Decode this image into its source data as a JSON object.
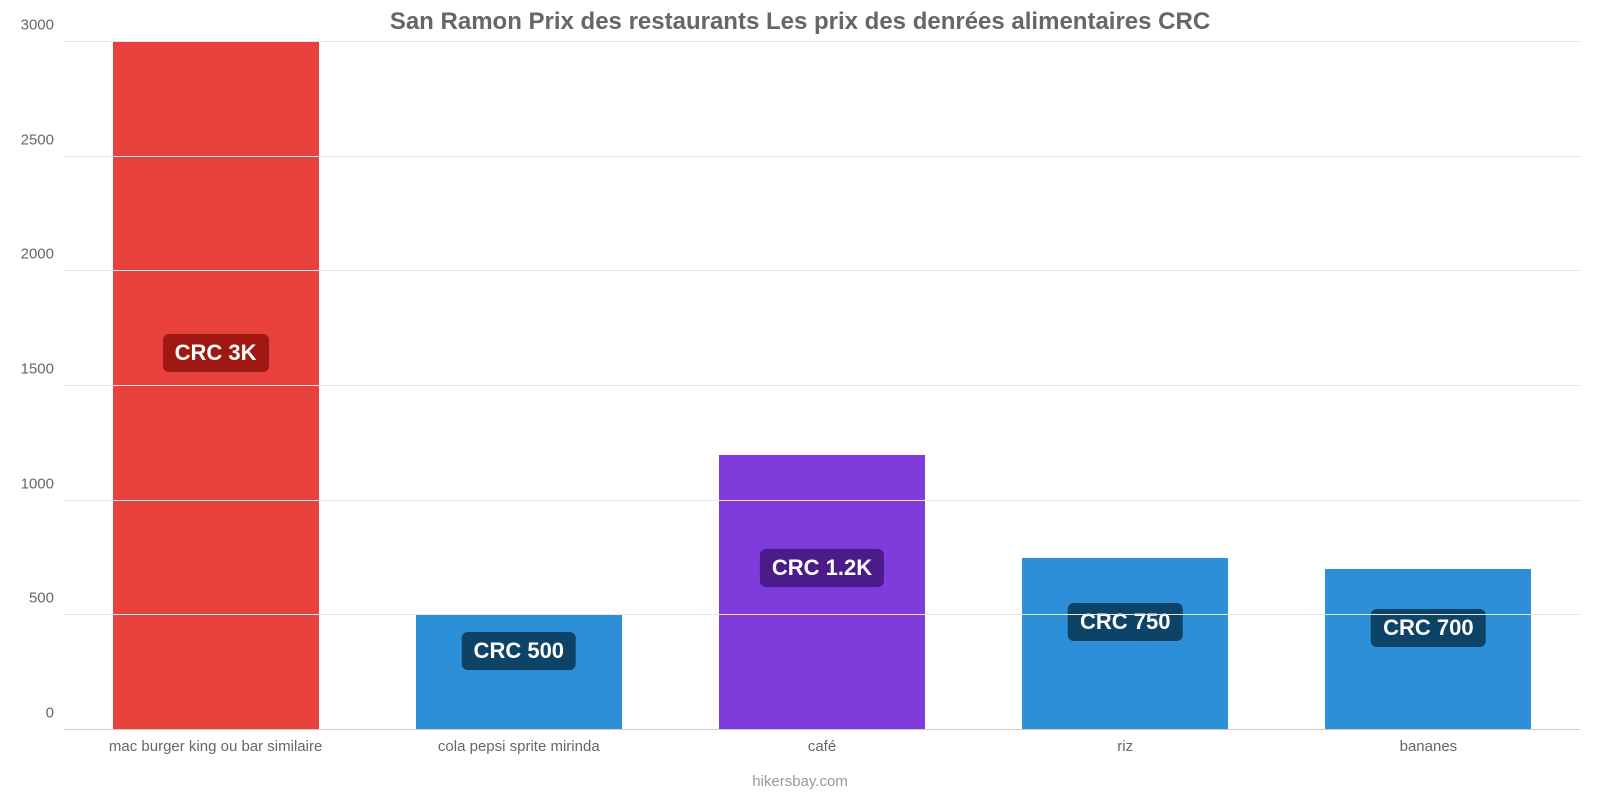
{
  "chart": {
    "type": "bar",
    "title": "San Ramon Prix des restaurants Les prix des denrées alimentaires CRC",
    "title_fontsize": 24,
    "title_color": "#666666",
    "background_color": "#ffffff",
    "grid_color": "#e6e6e6",
    "axis_color": "#cccccc",
    "tick_label_color": "#666666",
    "tick_label_fontsize": 15,
    "footer": "hikersbay.com",
    "footer_color": "#999999",
    "footer_fontsize": 15,
    "ylim": [
      0,
      3000
    ],
    "ytick_step": 500,
    "yticks": [
      0,
      500,
      1000,
      1500,
      2000,
      2500,
      3000
    ],
    "bar_width": 0.68,
    "value_label_fontsize": 22,
    "categories": [
      "mac burger king ou bar similaire",
      "cola pepsi sprite mirinda",
      "café",
      "riz",
      "bananes"
    ],
    "values": [
      3000,
      500,
      1200,
      750,
      700
    ],
    "value_labels": [
      "CRC 3K",
      "CRC 500",
      "CRC 1.2K",
      "CRC 750",
      "CRC 700"
    ],
    "bar_colors": [
      "#e8403a",
      "#2d8fd8",
      "#803bdd",
      "#2d8fd8",
      "#2d8fd8"
    ],
    "badge_colors": [
      "#a01812",
      "#0d4366",
      "#4a1b89",
      "#0d4366",
      "#0d4366"
    ],
    "badge_text_color": "#ffffff"
  }
}
